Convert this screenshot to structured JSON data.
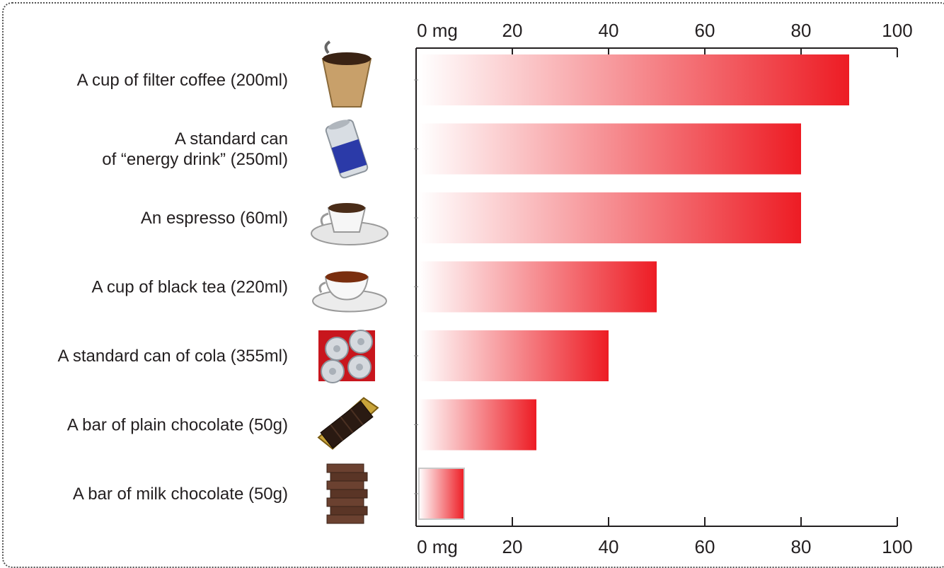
{
  "chart_data": {
    "type": "bar",
    "orientation": "horizontal",
    "title": "",
    "xlabel": "",
    "ylabel": "",
    "unit": "mg",
    "xlim": [
      0,
      100
    ],
    "ticks": [
      "0 mg",
      "20",
      "40",
      "60",
      "80",
      "100"
    ],
    "tick_values": [
      0,
      20,
      40,
      60,
      80,
      100
    ],
    "grid": false,
    "bar_gradient": {
      "from": "#ffffff",
      "to": "#ed1c24"
    },
    "categories": [
      {
        "label": [
          "A cup of filter coffee (200ml)"
        ],
        "icon": "filter-coffee-icon",
        "value": 90
      },
      {
        "label": [
          "A standard can",
          "of “energy drink” (250ml)"
        ],
        "icon": "energy-drink-can-icon",
        "value": 80
      },
      {
        "label": [
          "An espresso (60ml)"
        ],
        "icon": "espresso-cup-icon",
        "value": 80
      },
      {
        "label": [
          "A cup of black tea (220ml)"
        ],
        "icon": "tea-cup-icon",
        "value": 50
      },
      {
        "label": [
          "A standard can of cola (355ml)"
        ],
        "icon": "cola-cans-icon",
        "value": 40
      },
      {
        "label": [
          "A bar of plain chocolate (50g)"
        ],
        "icon": "plain-chocolate-icon",
        "value": 25
      },
      {
        "label": [
          "A bar of milk chocolate (50g)"
        ],
        "icon": "milk-chocolate-icon",
        "value": 10
      }
    ]
  }
}
